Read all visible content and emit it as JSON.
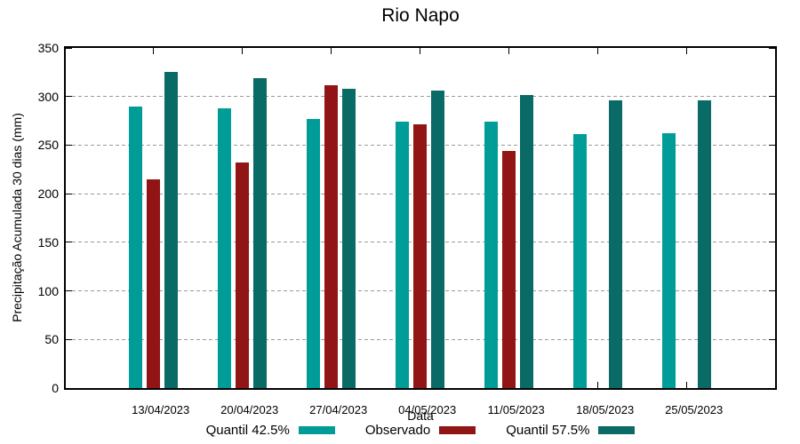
{
  "chart_data": {
    "type": "bar",
    "title": "Rio Napo",
    "xlabel": "Data",
    "ylabel": "Precipitação Acumulada 30 dias (mm)",
    "ylim": [
      0,
      350
    ],
    "yticks": [
      0,
      50,
      100,
      150,
      200,
      250,
      300,
      350
    ],
    "grid": "horizontal-dashed",
    "legend_position": "bottom",
    "categories": [
      "13/04/2023",
      "20/04/2023",
      "27/04/2023",
      "04/05/2023",
      "11/05/2023",
      "18/05/2023",
      "25/05/2023"
    ],
    "series": [
      {
        "name": "Quantil 42.5%",
        "color": "#009C98",
        "values": [
          290,
          288,
          277,
          274,
          274,
          261,
          262
        ]
      },
      {
        "name": "Observado",
        "color": "#921515",
        "values": [
          215,
          232,
          312,
          271,
          244,
          null,
          null
        ]
      },
      {
        "name": "Quantil 57.5%",
        "color": "#0A6A66",
        "values": [
          325,
          319,
          308,
          306,
          302,
          296,
          296
        ]
      }
    ]
  },
  "colors": {
    "background": "#ffffff",
    "axis": "#000000",
    "grid": "#9a9a9a",
    "text": "#000000"
  }
}
